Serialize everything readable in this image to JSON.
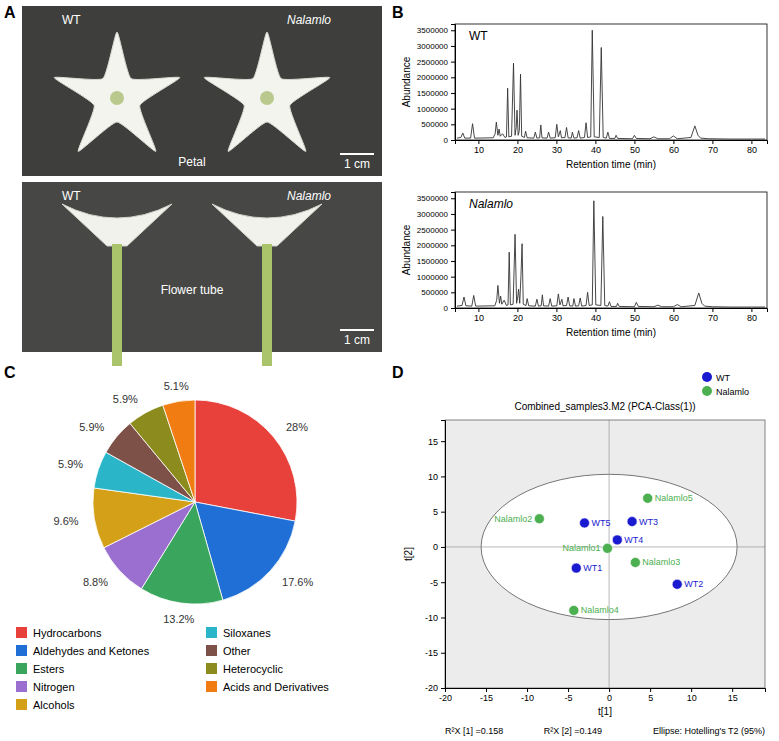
{
  "photo_panel": {
    "panel": "A",
    "rows": [
      {
        "left": "WT",
        "right": "Nalamlo",
        "caption": "Petal",
        "scale_bar": "1 cm"
      },
      {
        "left": "WT",
        "right": "Nalamlo",
        "caption": "Flower tube",
        "scale_bar": "1 cm"
      }
    ]
  },
  "chart_data": [
    {
      "type": "line",
      "panel": "B",
      "annotation": "WT",
      "color": "#333333",
      "x_label": "Retention time (min)",
      "y_label": "Abundance",
      "xlim": [
        4,
        84
      ],
      "xticks": [
        10,
        20,
        30,
        40,
        50,
        60,
        70,
        80
      ],
      "ylim": [
        0,
        3700000
      ],
      "yticks": [
        0,
        500000,
        1000000,
        1500000,
        2000000,
        2500000,
        3000000,
        3500000
      ],
      "x": [
        4.5,
        5.5,
        6,
        6.5,
        8,
        8.5,
        9,
        13.8,
        14.3,
        14.6,
        15,
        15.3,
        15.6,
        16.2,
        16.8,
        17.2,
        17.5,
        17.8,
        18.5,
        19,
        19.4,
        19.7,
        19.9,
        20.2,
        20.5,
        20.8,
        21.1,
        21.8,
        22.1,
        22.5,
        24.2,
        24.6,
        25,
        25.7,
        26,
        26.3,
        27.6,
        28,
        28.4,
        29.7,
        30.1,
        30.5,
        31,
        31.3,
        32.2,
        32.6,
        33,
        33.8,
        34.1,
        34.5,
        35.3,
        35.7,
        36.1,
        37.2,
        37.6,
        38,
        38.8,
        39.2,
        39.7,
        41,
        41.5,
        42,
        42.8,
        43.2,
        43.6,
        45,
        45.3,
        45.7,
        49.5,
        50,
        50.5,
        54,
        55,
        56,
        59,
        60,
        61,
        64.5,
        65.5,
        66.3,
        67,
        69,
        75,
        80,
        83.5
      ],
      "values": [
        60000,
        80000,
        220000,
        60000,
        60000,
        520000,
        60000,
        70000,
        200000,
        570000,
        150000,
        350000,
        120000,
        200000,
        80000,
        100000,
        1650000,
        100000,
        120000,
        2450000,
        150000,
        400000,
        950000,
        150000,
        300000,
        2100000,
        120000,
        80000,
        280000,
        70000,
        60000,
        250000,
        60000,
        70000,
        480000,
        70000,
        60000,
        250000,
        60000,
        70000,
        500000,
        100000,
        300000,
        70000,
        80000,
        400000,
        70000,
        60000,
        250000,
        60000,
        70000,
        300000,
        60000,
        80000,
        550000,
        80000,
        100000,
        3500000,
        100000,
        80000,
        2950000,
        80000,
        60000,
        250000,
        50000,
        50000,
        150000,
        50000,
        40000,
        150000,
        50000,
        40000,
        100000,
        40000,
        40000,
        130000,
        40000,
        80000,
        450000,
        150000,
        60000,
        40000,
        30000,
        30000,
        30000
      ]
    },
    {
      "type": "line",
      "annotation": "Nalamlo",
      "color": "#333333",
      "x_label": "Retention time (min)",
      "y_label": "Abundance",
      "xlim": [
        4,
        84
      ],
      "xticks": [
        10,
        20,
        30,
        40,
        50,
        60,
        70,
        80
      ],
      "ylim": [
        0,
        3700000
      ],
      "yticks": [
        0,
        500000,
        1000000,
        1500000,
        2000000,
        2500000,
        3000000,
        3500000
      ],
      "x": [
        4.5,
        5.8,
        6.3,
        6.8,
        8.3,
        8.8,
        9.3,
        14.2,
        14.7,
        15,
        15.4,
        15.7,
        16,
        16.6,
        17.2,
        17.6,
        17.9,
        18.2,
        18.9,
        19.4,
        19.8,
        20.1,
        20.3,
        20.6,
        20.9,
        21.2,
        21.5,
        22.2,
        22.5,
        22.9,
        24.6,
        25,
        25.4,
        26.1,
        26.4,
        26.7,
        28,
        28.4,
        28.8,
        30.1,
        30.5,
        30.9,
        31.4,
        31.7,
        32.6,
        33,
        33.4,
        34.2,
        34.5,
        34.9,
        35.7,
        36.1,
        36.5,
        37.6,
        38,
        38.4,
        39.2,
        39.6,
        40.1,
        41.4,
        41.9,
        42.4,
        43.2,
        43.6,
        44,
        45.4,
        45.7,
        46.1,
        50,
        50.5,
        51,
        55,
        56,
        57,
        60,
        61,
        62,
        65.5,
        66.5,
        67.3,
        68,
        70,
        75,
        80,
        83.5
      ],
      "values": [
        60000,
        80000,
        350000,
        70000,
        60000,
        400000,
        60000,
        70000,
        250000,
        720000,
        150000,
        380000,
        120000,
        250000,
        80000,
        100000,
        1780000,
        100000,
        120000,
        2350000,
        150000,
        350000,
        600000,
        150000,
        1000000,
        2050000,
        120000,
        80000,
        300000,
        70000,
        60000,
        280000,
        60000,
        70000,
        420000,
        70000,
        60000,
        300000,
        60000,
        70000,
        450000,
        100000,
        280000,
        70000,
        80000,
        350000,
        70000,
        60000,
        300000,
        60000,
        70000,
        320000,
        60000,
        80000,
        500000,
        80000,
        100000,
        3420000,
        100000,
        80000,
        2920000,
        80000,
        60000,
        200000,
        50000,
        50000,
        150000,
        50000,
        40000,
        180000,
        50000,
        40000,
        90000,
        40000,
        40000,
        110000,
        40000,
        80000,
        480000,
        150000,
        60000,
        40000,
        30000,
        30000,
        30000
      ]
    },
    {
      "type": "pie",
      "panel": "C",
      "legend": "bottom",
      "categories": [
        "Hydrocarbons",
        "Aldehydes and Ketones",
        "Esters",
        "Nitrogen",
        "Alcohols",
        "Siloxanes",
        "Other",
        "Heterocyclic",
        "Acids and Derivatives"
      ],
      "values": [
        28,
        17.6,
        13.2,
        8.8,
        9.6,
        5.9,
        5.9,
        5.9,
        5.1
      ],
      "value_labels": [
        "28%",
        "17.6%",
        "13.2%",
        "8.8%",
        "9.6%",
        "5.9%",
        "5.9%",
        "5.9%",
        "5.1%"
      ],
      "colors": [
        "#e8403a",
        "#1f6fd6",
        "#3aa55d",
        "#9b6fd0",
        "#d4a017",
        "#2bb5c9",
        "#7d5048",
        "#8c8c1e",
        "#f07c12"
      ],
      "data_labels": true
    },
    {
      "type": "scatter",
      "panel": "D",
      "title": "Combined_samples3.M2 (PCA-Class(1))",
      "x_label": "t[1]",
      "y_label": "t[2]",
      "legend": "top-right",
      "marker": "circle",
      "xlim": [
        -20,
        19
      ],
      "xticks": [
        -20,
        -15,
        -10,
        -5,
        0,
        5,
        10,
        15
      ],
      "ylim": [
        -20,
        18
      ],
      "yticks": [
        -20,
        -15,
        -10,
        -5,
        0,
        5,
        10,
        15
      ],
      "ellipse_radii": [
        15.6,
        10.3
      ],
      "footer": [
        "R²X [1] =0.158",
        "R²X [2] =0.149",
        "Ellipse: Hotelling's T2 (95%)"
      ],
      "series": [
        {
          "name": "WT",
          "color": "#1a1ad0",
          "x": [
            -4,
            8.3,
            2.8,
            1,
            -3
          ],
          "values": [
            -3,
            -5.3,
            3.6,
            1,
            3.4
          ],
          "labels": [
            "WT1",
            "WT2",
            "WT3",
            "WT4",
            "WT5"
          ]
        },
        {
          "name": "Nalamlo",
          "color": "#4caf50",
          "x": [
            -0.2,
            -8.5,
            3.2,
            -4.3,
            4.7
          ],
          "values": [
            -0.2,
            4,
            -2.2,
            -9,
            6.9
          ],
          "labels": [
            "Nalamlo1",
            "Nalamlo2",
            "Nalamlo3",
            "Nalamlo4",
            "Nalamlo5"
          ]
        }
      ]
    }
  ]
}
